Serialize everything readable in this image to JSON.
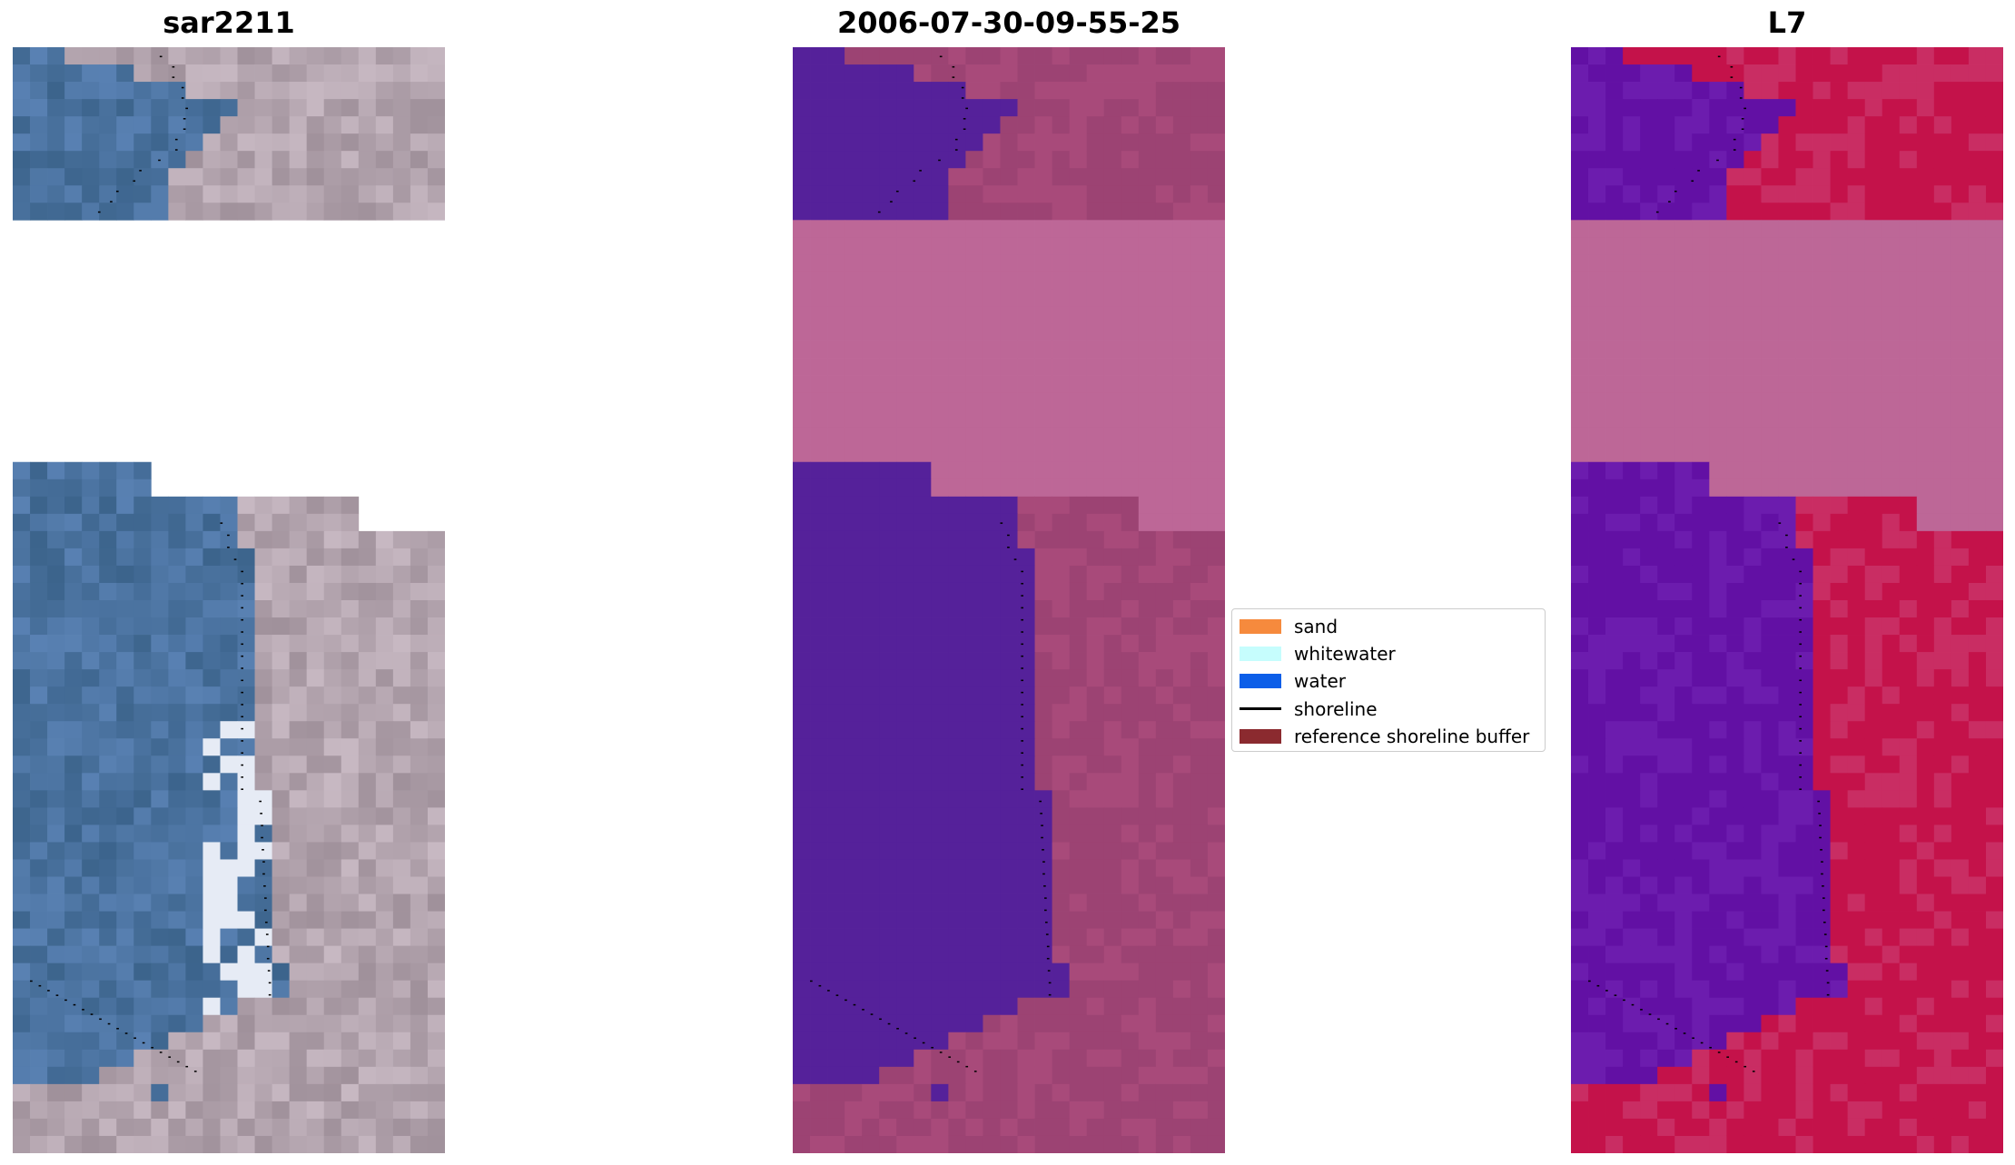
{
  "panels": [
    {
      "title": "sar2211",
      "style": "rgb"
    },
    {
      "title": "2006-07-30-09-55-25",
      "style": "classified"
    },
    {
      "title": "L7",
      "style": "mndwi"
    }
  ],
  "legend": {
    "items": [
      {
        "label": "sand",
        "color": "#f68a3d",
        "kind": "patch"
      },
      {
        "label": "whitewater",
        "color": "#c6fdfd",
        "kind": "patch"
      },
      {
        "label": "water",
        "color": "#0c5ee8",
        "kind": "patch"
      },
      {
        "label": "shoreline",
        "color": "#000000",
        "kind": "line"
      },
      {
        "label": "reference shoreline buffer",
        "color": "#8b2a2f",
        "kind": "patch"
      }
    ]
  },
  "colors": {
    "nodata": "#bd6797",
    "classified_water": "#55219a",
    "classified_land": "#9c4373",
    "mndwi_water": "#6210a4",
    "mndwi_land": "#c4124a"
  }
}
